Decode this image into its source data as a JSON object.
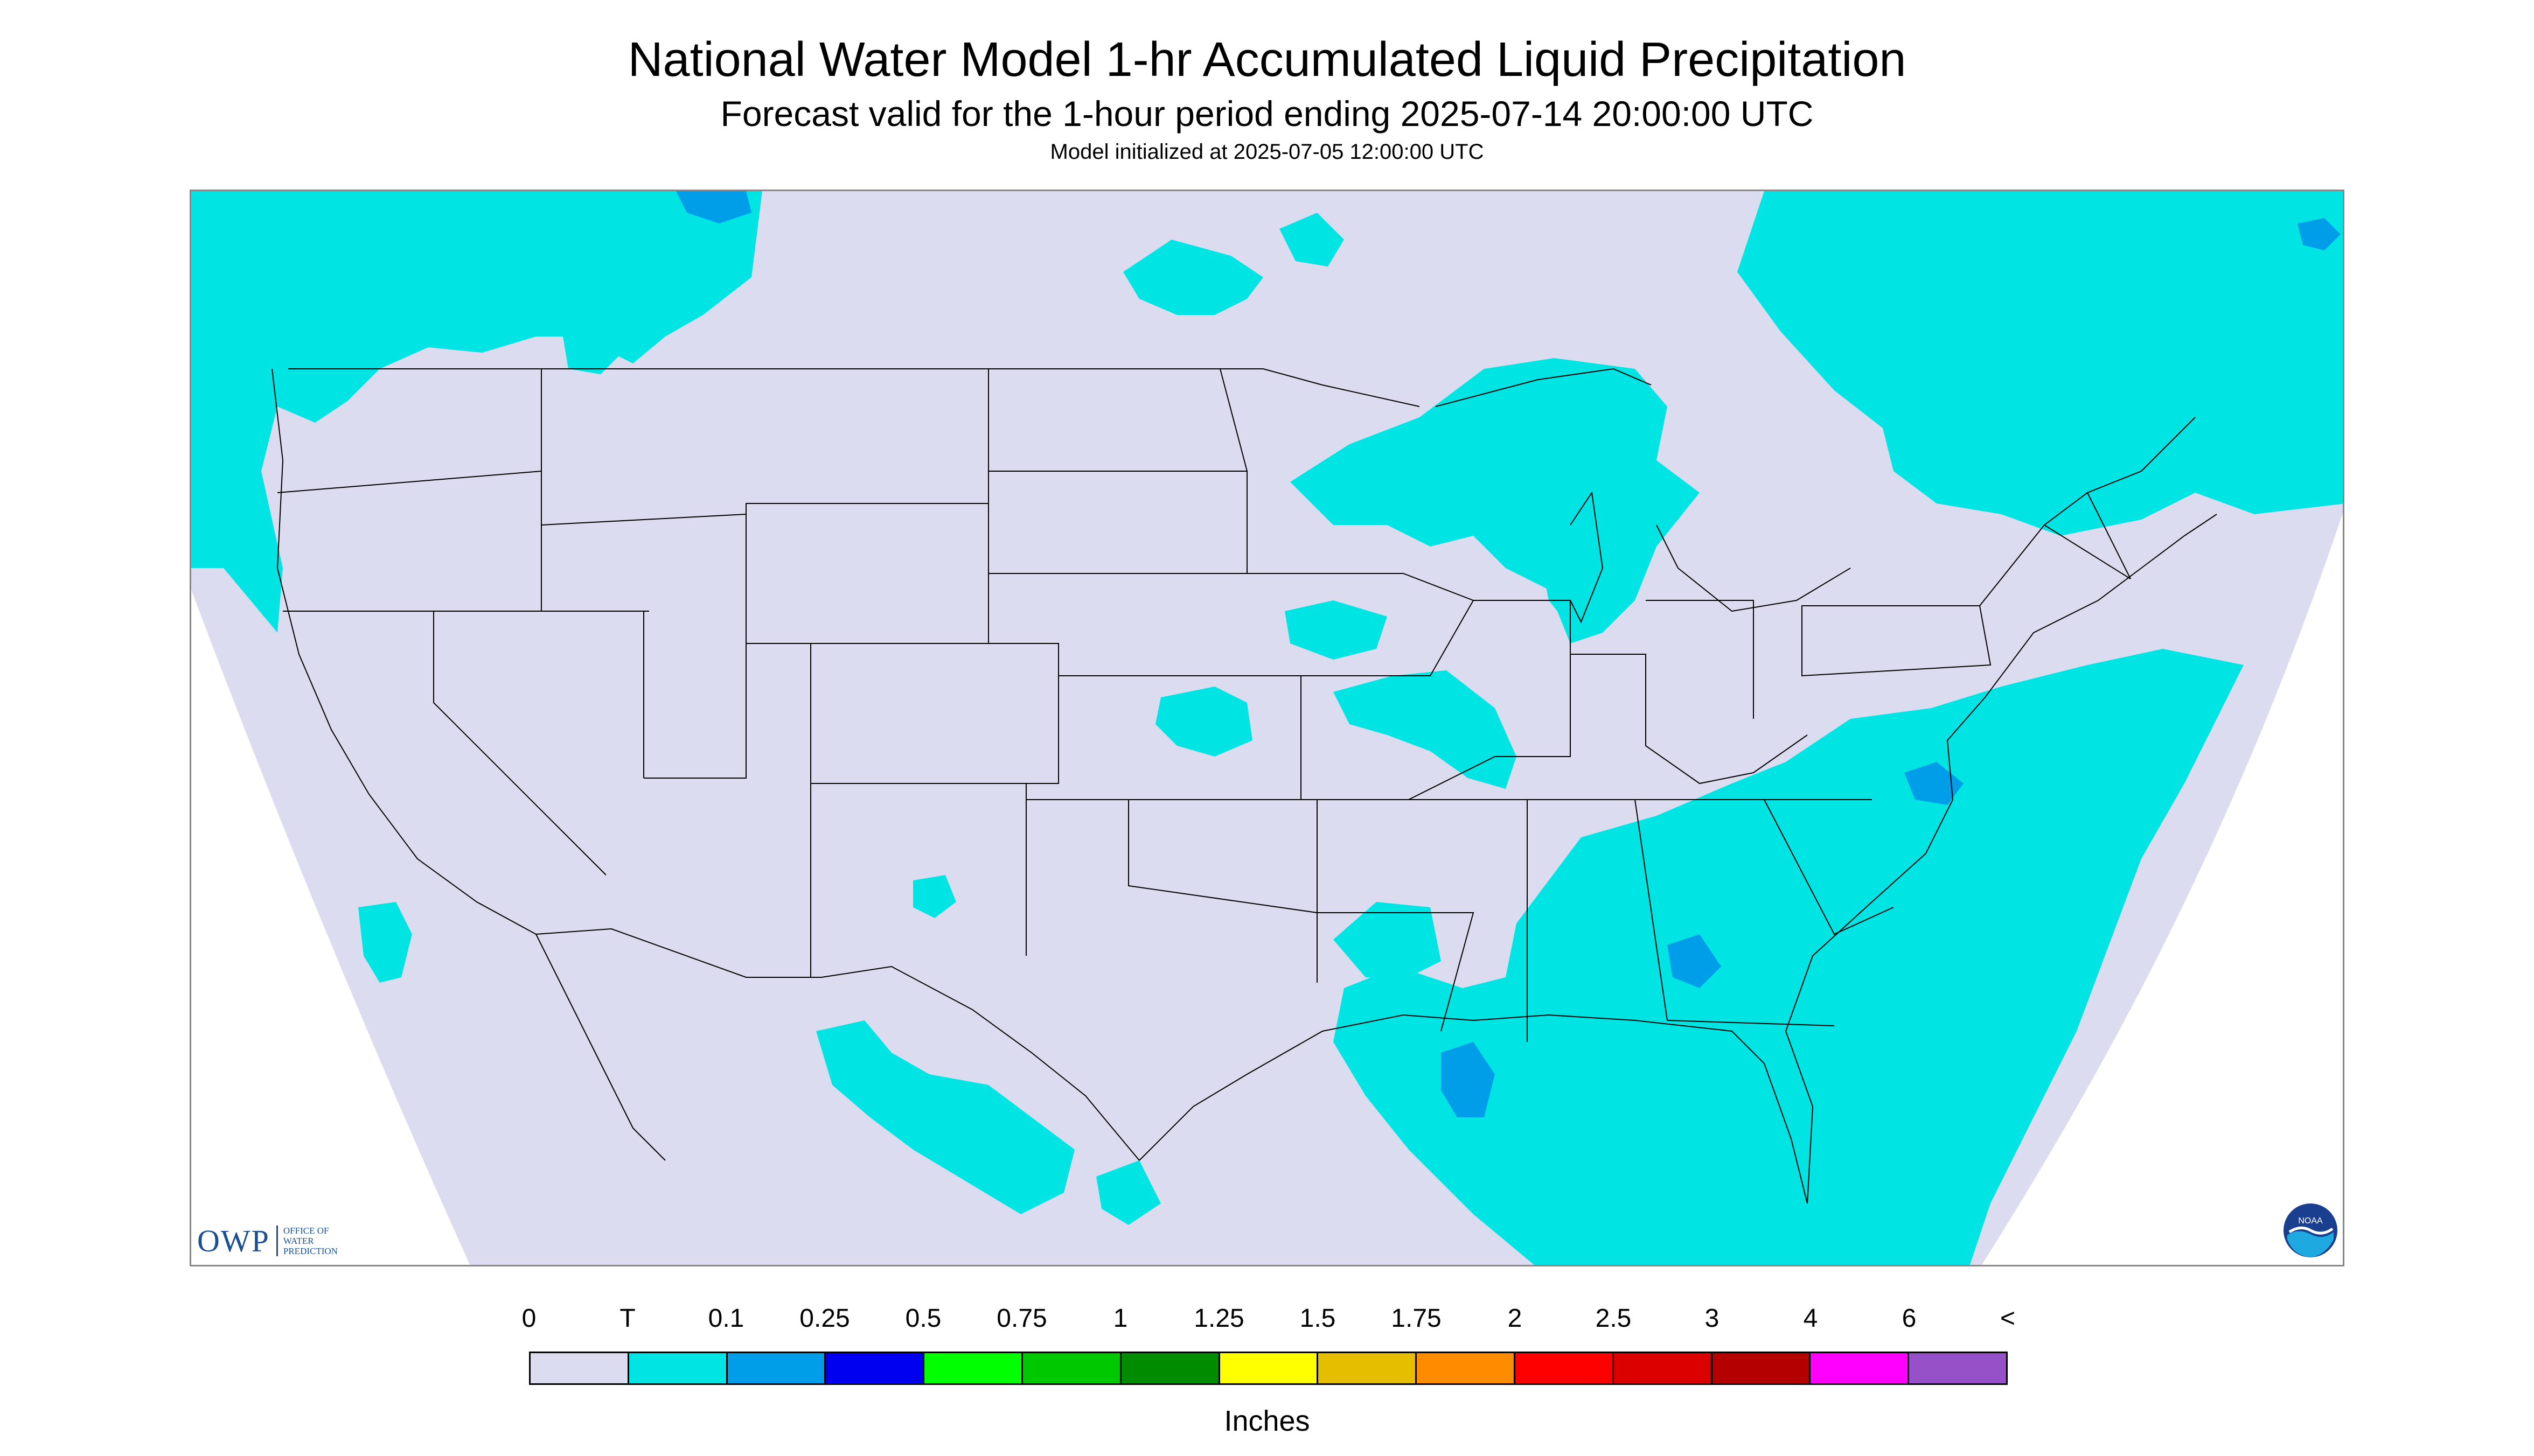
{
  "title": "National Water Model 1-hr Accumulated Liquid Precipitation",
  "subtitle": "Forecast valid for the 1-hour period ending 2025-07-14 20:00:00 UTC",
  "init_text": "Model initialized at 2025-07-05 12:00:00 UTC",
  "logos": {
    "owp_word": "OWP",
    "owp_sub": "OFFICE OF\nWATER\nPREDICTION",
    "noaa_word": "NOAA"
  },
  "legend": {
    "units": "Inches",
    "labels": [
      "0",
      "T",
      "0.1",
      "0.25",
      "0.5",
      "0.75",
      "1",
      "1.25",
      "1.5",
      "1.75",
      "2",
      "2.5",
      "3",
      "4",
      "6",
      "<"
    ],
    "colors": [
      "#dcdcf0",
      "#00e4e4",
      "#009ee8",
      "#0000f0",
      "#00ff00",
      "#00c800",
      "#008c00",
      "#ffff00",
      "#e6be00",
      "#ff8c00",
      "#ff0000",
      "#dc0000",
      "#b40000",
      "#ff00ff",
      "#9650c8"
    ]
  },
  "map_colors": {
    "no_precip": "#dcdcf0",
    "trace": "#00e4e4",
    "light": "#009ee8",
    "outside_domain": "#ffffff",
    "boundary": "#000000"
  }
}
